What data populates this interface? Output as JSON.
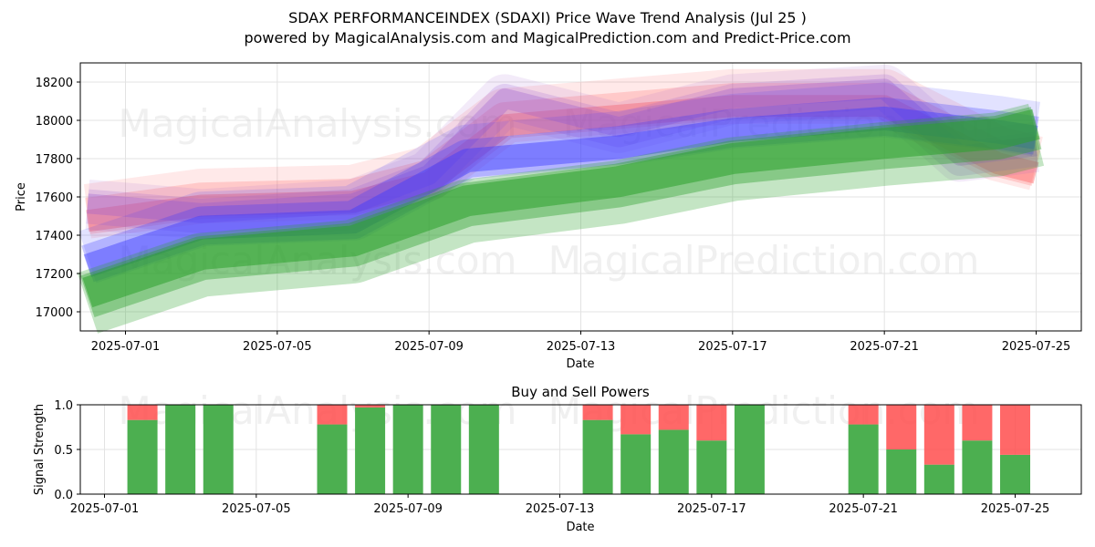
{
  "title_line1": "SDAX PERFORMANCEINDEX (SDAXI) Price Wave Trend Analysis (Jul 25 )",
  "title_line2": "powered by MagicalAnalysis.com and MagicalPrediction.com and Predict-Price.com",
  "watermarks": [
    "MagicalAnalysis.com",
    "MagicalPrediction.com"
  ],
  "colors": {
    "green": "#2ca02c",
    "blue": "#3b3bff",
    "red": "#ff4d4d",
    "purple": "#9b59d0",
    "buy": "#4caf50",
    "sell": "#ff4d4d"
  },
  "chart_data": [
    {
      "type": "area",
      "title": "",
      "xlabel": "Date",
      "ylabel": "Price",
      "x_ticks": [
        "2025-07-01",
        "2025-07-05",
        "2025-07-09",
        "2025-07-13",
        "2025-07-17",
        "2025-07-21",
        "2025-07-25"
      ],
      "y_ticks": [
        17000,
        17200,
        17400,
        17600,
        17800,
        18000,
        18200
      ],
      "xlim": [
        "2025-06-30",
        "2025-07-26"
      ],
      "ylim": [
        16900,
        18300
      ],
      "grid": true,
      "series": [
        {
          "color": "green",
          "x": [
            "2025-06-30",
            "2025-07-03",
            "2025-07-07",
            "2025-07-10",
            "2025-07-14",
            "2025-07-17",
            "2025-07-21",
            "2025-07-24",
            "2025-07-25"
          ],
          "y": [
            17100,
            17300,
            17370,
            17580,
            17680,
            17800,
            17880,
            17930,
            17980
          ]
        },
        {
          "color": "blue",
          "x": [
            "2025-06-30",
            "2025-07-03",
            "2025-07-07",
            "2025-07-10",
            "2025-07-14",
            "2025-07-17",
            "2025-07-21",
            "2025-07-24",
            "2025-07-25"
          ],
          "y": [
            17250,
            17450,
            17480,
            17800,
            17870,
            17960,
            18020,
            17950,
            17920
          ]
        },
        {
          "color": "red",
          "x": [
            "2025-06-30",
            "2025-07-03",
            "2025-07-07",
            "2025-07-09",
            "2025-07-11",
            "2025-07-14",
            "2025-07-17",
            "2025-07-21",
            "2025-07-24",
            "2025-07-25"
          ],
          "y": [
            17500,
            17580,
            17600,
            17700,
            18000,
            18050,
            18100,
            18100,
            17800,
            17750
          ]
        },
        {
          "color": "purple",
          "x": [
            "2025-06-30",
            "2025-07-03",
            "2025-07-07",
            "2025-07-09",
            "2025-07-11",
            "2025-07-14",
            "2025-07-17",
            "2025-07-21",
            "2025-07-23",
            "2025-07-25"
          ],
          "y": [
            17550,
            17500,
            17550,
            17700,
            18100,
            17950,
            18100,
            18150,
            17800,
            17850
          ]
        }
      ]
    },
    {
      "type": "bar",
      "title": "Buy and Sell Powers",
      "xlabel": "Date",
      "ylabel": "Signal Strength",
      "x_ticks": [
        "2025-07-01",
        "2025-07-05",
        "2025-07-09",
        "2025-07-13",
        "2025-07-17",
        "2025-07-21",
        "2025-07-25"
      ],
      "y_ticks": [
        "0.0",
        "0.5",
        "1.0"
      ],
      "ylim": [
        0,
        1
      ],
      "grid": true,
      "categories": [
        "2025-07-02",
        "2025-07-03",
        "2025-07-04",
        "2025-07-07",
        "2025-07-08",
        "2025-07-09",
        "2025-07-10",
        "2025-07-11",
        "2025-07-14",
        "2025-07-15",
        "2025-07-16",
        "2025-07-17",
        "2025-07-18",
        "2025-07-21",
        "2025-07-22",
        "2025-07-23",
        "2025-07-24",
        "2025-07-25"
      ],
      "series": [
        {
          "name": "Buy",
          "color": "buy",
          "values": [
            0.83,
            1.0,
            1.0,
            0.78,
            0.97,
            1.0,
            1.0,
            1.0,
            0.83,
            0.67,
            0.72,
            0.6,
            1.0,
            0.78,
            0.5,
            0.33,
            0.6,
            0.44
          ]
        },
        {
          "name": "Sell",
          "color": "sell",
          "values": [
            0.17,
            0.0,
            0.0,
            0.22,
            0.03,
            0.0,
            0.0,
            0.0,
            0.17,
            0.33,
            0.28,
            0.4,
            0.0,
            0.22,
            0.5,
            0.67,
            0.4,
            0.56
          ]
        }
      ]
    }
  ]
}
